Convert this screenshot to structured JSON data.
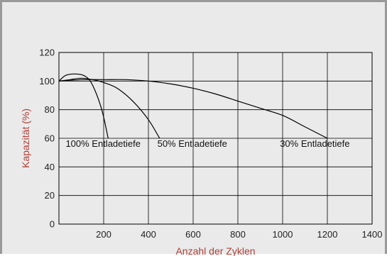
{
  "chart_data": {
    "type": "line",
    "xlabel": "Anzahl der Zyklen",
    "ylabel": "Kapazität (%)",
    "xlim": [
      0,
      1400
    ],
    "ylim": [
      0,
      120
    ],
    "xticks": [
      200,
      400,
      600,
      800,
      1000,
      1200,
      1400
    ],
    "yticks": [
      0,
      20,
      40,
      60,
      80,
      100,
      120
    ],
    "grid": true,
    "colors": {
      "background": "#eaeaea",
      "axis_title": "#b0403a",
      "line": "#000000",
      "grid": "#000000",
      "frame": "#999999"
    },
    "series": [
      {
        "name": "100% Entladetiefe",
        "x": [
          0,
          30,
          70,
          110,
          140,
          170,
          195,
          220
        ],
        "y": [
          100,
          104,
          105,
          104,
          100,
          90,
          78,
          60
        ]
      },
      {
        "name": "50% Entladetiefe",
        "x": [
          0,
          50,
          100,
          150,
          200,
          260,
          330,
          400,
          450
        ],
        "y": [
          100,
          101,
          102,
          101,
          99,
          95,
          86,
          73,
          60
        ]
      },
      {
        "name": "30% Entladetiefe",
        "x": [
          0,
          100,
          200,
          300,
          400,
          500,
          600,
          700,
          800,
          900,
          1000,
          1100,
          1200
        ],
        "y": [
          100,
          101,
          101,
          101,
          100,
          98,
          95,
          91,
          86,
          81,
          76,
          68,
          60
        ]
      }
    ]
  }
}
